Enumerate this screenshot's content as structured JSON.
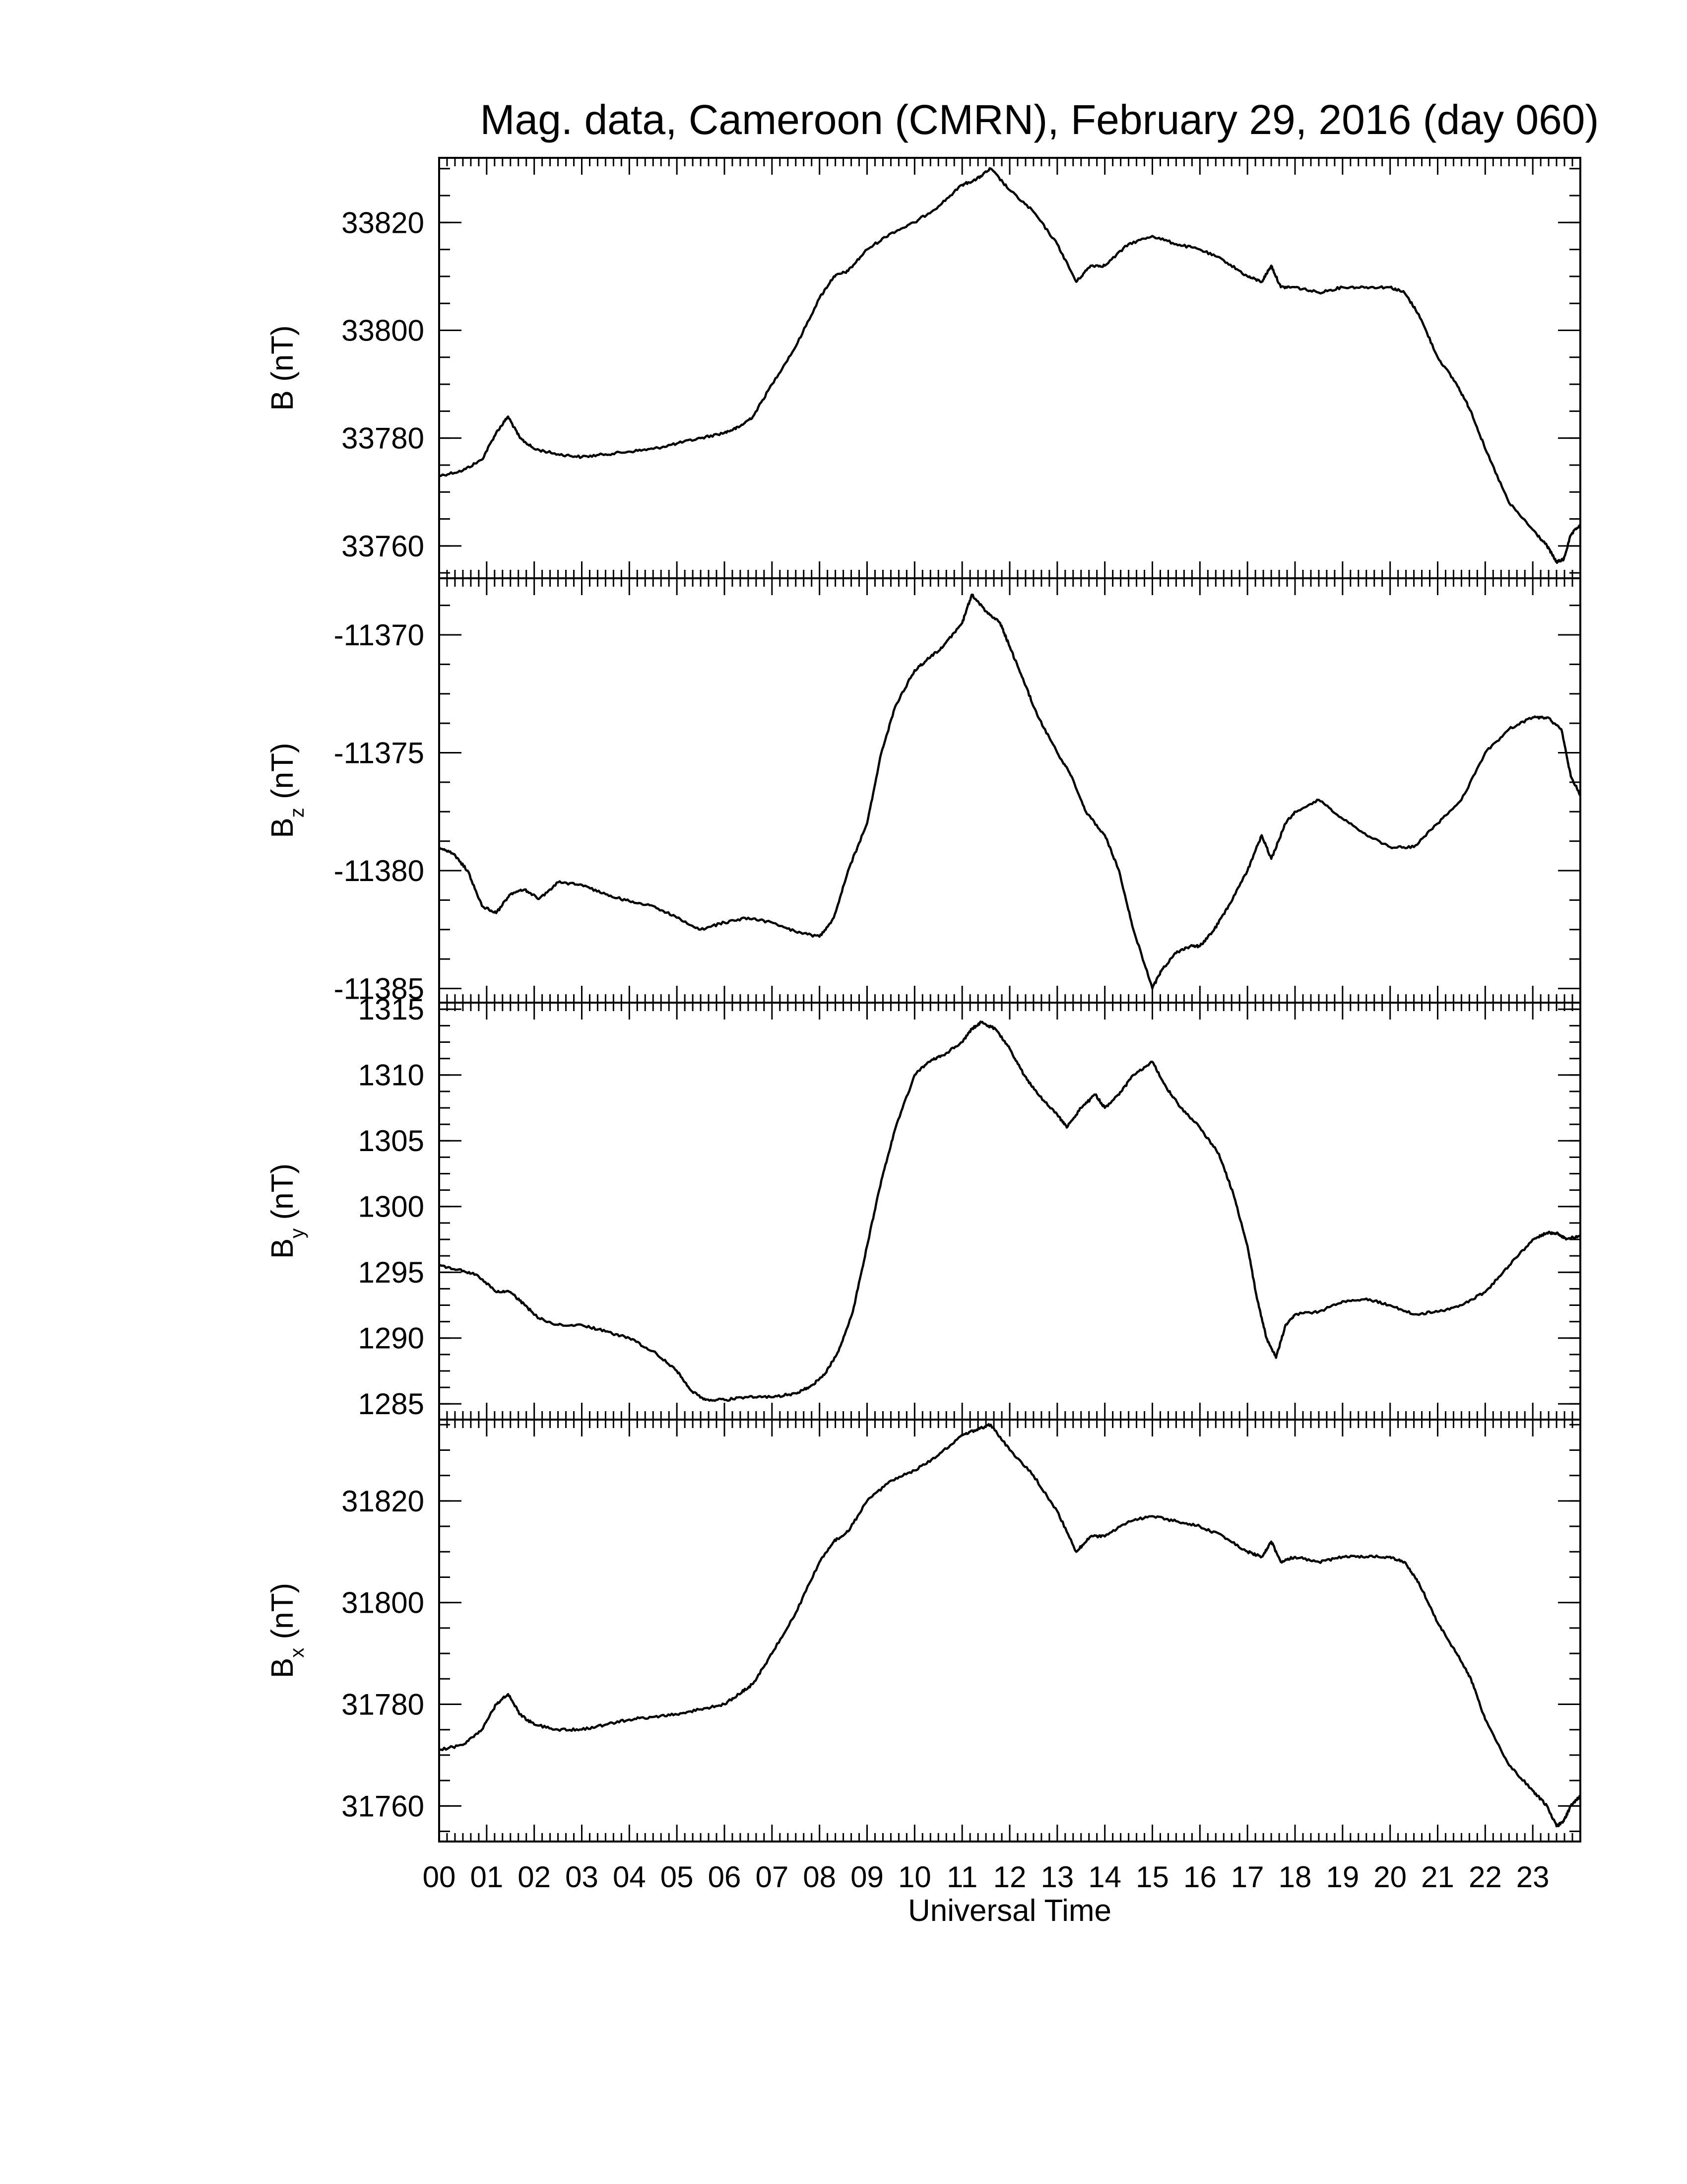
{
  "title": "Mag. data, Cameroon (CMRN), February 29, 2016 (day 060)",
  "xlabel": "Universal Time",
  "chart_data": [
    {
      "type": "line",
      "ylabel": "B (nT)",
      "ylabel_main": "B",
      "ylabel_sub": "",
      "ylabel_unit": " (nT)",
      "ylim": [
        33754,
        33832
      ],
      "yticks": [
        33760,
        33780,
        33800,
        33820
      ],
      "xlim": [
        0,
        24
      ],
      "x": [
        0,
        0.5,
        0.9,
        1.2,
        1.45,
        1.7,
        2.0,
        2.5,
        3.0,
        3.5,
        4.0,
        4.5,
        5.0,
        5.5,
        6.0,
        6.3,
        6.6,
        7.0,
        7.5,
        8.0,
        8.3,
        8.6,
        9.0,
        9.5,
        10.0,
        10.5,
        11.0,
        11.3,
        11.6,
        12.0,
        12.5,
        13.0,
        13.4,
        13.7,
        14.0,
        14.5,
        15.0,
        15.5,
        16.0,
        16.5,
        17.0,
        17.3,
        17.5,
        17.7,
        18.0,
        18.5,
        19.0,
        19.5,
        20.0,
        20.3,
        20.6,
        21.0,
        21.4,
        21.7,
        22.0,
        22.5,
        23.0,
        23.3,
        23.5,
        23.65,
        23.8,
        24.0
      ],
      "y": [
        33773,
        33774,
        33776,
        33781,
        33784,
        33780,
        33778,
        33777,
        33776.5,
        33777,
        33777.5,
        33778,
        33779,
        33780,
        33781,
        33782,
        33784,
        33790,
        33797,
        33806,
        33810,
        33811,
        33815,
        33818,
        33820,
        33823,
        33827,
        33828,
        33830,
        33826,
        33822,
        33816,
        33809,
        33812,
        33812,
        33816,
        33817.5,
        33816,
        33815,
        33813,
        33810,
        33809,
        33812,
        33808,
        33808,
        33807,
        33808,
        33808,
        33808,
        33807,
        33803,
        33795,
        33790,
        33785,
        33778,
        33768,
        33763,
        33760,
        33757,
        33757.5,
        33762,
        33764
      ]
    },
    {
      "type": "line",
      "ylabel": "Bz (nT)",
      "ylabel_main": "B",
      "ylabel_sub": "z",
      "ylabel_unit": " (nT)",
      "ylim": [
        -11385.6,
        -11367.6
      ],
      "yticks": [
        -11385,
        -11380,
        -11375,
        -11370
      ],
      "xlim": [
        0,
        24
      ],
      "x": [
        0,
        0.3,
        0.6,
        0.9,
        1.2,
        1.5,
        1.8,
        2.1,
        2.5,
        3.0,
        3.5,
        4.0,
        4.5,
        5.0,
        5.5,
        6.0,
        6.5,
        7.0,
        7.5,
        8.0,
        8.3,
        8.6,
        9.0,
        9.3,
        9.6,
        10.0,
        10.3,
        10.6,
        11.0,
        11.2,
        11.5,
        11.8,
        12.0,
        12.3,
        12.6,
        13.0,
        13.3,
        13.6,
        14.0,
        14.3,
        14.6,
        15.0,
        15.2,
        15.5,
        15.8,
        16.0,
        16.3,
        16.6,
        17.0,
        17.3,
        17.5,
        17.8,
        18.0,
        18.5,
        19.0,
        19.5,
        20.0,
        20.5,
        21.0,
        21.5,
        22.0,
        22.5,
        23.0,
        23.3,
        23.6,
        23.8,
        24.0
      ],
      "y": [
        -11379.0,
        -11379.3,
        -11380.0,
        -11381.5,
        -11381.8,
        -11381.0,
        -11380.8,
        -11381.2,
        -11380.5,
        -11380.6,
        -11381.0,
        -11381.3,
        -11381.5,
        -11382.0,
        -11382.5,
        -11382.2,
        -11382.0,
        -11382.2,
        -11382.6,
        -11382.8,
        -11382.0,
        -11380.0,
        -11378.0,
        -11375.0,
        -11373.0,
        -11371.5,
        -11371.0,
        -11370.5,
        -11369.5,
        -11368.3,
        -11369.0,
        -11369.5,
        -11370.5,
        -11372.0,
        -11373.5,
        -11375.0,
        -11376.0,
        -11377.5,
        -11378.5,
        -11380.0,
        -11382.5,
        -11385.0,
        -11384.2,
        -11383.5,
        -11383.2,
        -11383.2,
        -11382.5,
        -11381.5,
        -11380.0,
        -11378.5,
        -11379.5,
        -11378.0,
        -11377.5,
        -11377.0,
        -11377.8,
        -11378.5,
        -11379.0,
        -11379.0,
        -11378.0,
        -11377.0,
        -11375.0,
        -11374.0,
        -11373.5,
        -11373.5,
        -11374.0,
        -11376.0,
        -11376.8
      ]
    },
    {
      "type": "line",
      "ylabel": "By (nT)",
      "ylabel_main": "B",
      "ylabel_sub": "y",
      "ylabel_unit": " (nT)",
      "ylim": [
        1283.8,
        1315.5
      ],
      "yticks": [
        1285,
        1290,
        1295,
        1300,
        1305,
        1310,
        1315
      ],
      "xlim": [
        0,
        24
      ],
      "x": [
        0,
        0.4,
        0.8,
        1.2,
        1.5,
        1.8,
        2.1,
        2.5,
        3.0,
        3.5,
        4.0,
        4.5,
        5.0,
        5.3,
        5.6,
        6.0,
        6.5,
        7.0,
        7.5,
        7.8,
        8.1,
        8.4,
        8.7,
        9.0,
        9.3,
        9.6,
        10.0,
        10.3,
        10.6,
        11.0,
        11.2,
        11.4,
        11.7,
        12.0,
        12.3,
        12.6,
        13.0,
        13.2,
        13.5,
        13.8,
        14.0,
        14.3,
        14.6,
        15.0,
        15.3,
        15.6,
        16.0,
        16.4,
        16.7,
        17.0,
        17.2,
        17.4,
        17.6,
        17.8,
        18.0,
        18.5,
        19.0,
        19.5,
        20.0,
        20.5,
        21.0,
        21.5,
        22.0,
        22.5,
        23.0,
        23.3,
        23.5,
        23.7,
        24.0
      ],
      "y": [
        1295.5,
        1295.2,
        1294.8,
        1293.5,
        1293.5,
        1292.5,
        1291.5,
        1291.0,
        1291.0,
        1290.5,
        1290.0,
        1289.0,
        1287.5,
        1286.0,
        1285.3,
        1285.3,
        1285.5,
        1285.5,
        1285.8,
        1286.3,
        1287.2,
        1289.0,
        1292.0,
        1297.0,
        1302.0,
        1306.0,
        1310.0,
        1311.0,
        1311.5,
        1312.5,
        1313.5,
        1314.0,
        1313.5,
        1312.0,
        1310.0,
        1308.5,
        1307.0,
        1306.0,
        1307.5,
        1308.5,
        1307.5,
        1308.5,
        1310.0,
        1311.0,
        1309.0,
        1307.5,
        1306.0,
        1304.0,
        1301.0,
        1297.0,
        1293.0,
        1290.0,
        1288.5,
        1291.0,
        1291.8,
        1292.0,
        1292.8,
        1293.0,
        1292.5,
        1291.8,
        1292.0,
        1292.5,
        1293.5,
        1295.5,
        1297.5,
        1298.0,
        1298.0,
        1297.5,
        1297.8
      ]
    },
    {
      "type": "line",
      "ylabel": "Bx (nT)",
      "ylabel_main": "B",
      "ylabel_sub": "x",
      "ylabel_unit": " (nT)",
      "ylim": [
        31753,
        31836
      ],
      "yticks": [
        31760,
        31780,
        31800,
        31820
      ],
      "xlim": [
        0,
        24
      ],
      "x": [
        0,
        0.5,
        0.9,
        1.2,
        1.45,
        1.7,
        2.0,
        2.5,
        3.0,
        3.5,
        4.0,
        4.5,
        5.0,
        5.5,
        6.0,
        6.3,
        6.6,
        7.0,
        7.5,
        8.0,
        8.3,
        8.6,
        9.0,
        9.5,
        10.0,
        10.5,
        11.0,
        11.3,
        11.6,
        12.0,
        12.5,
        13.0,
        13.4,
        13.7,
        14.0,
        14.5,
        15.0,
        15.5,
        16.0,
        16.5,
        17.0,
        17.3,
        17.5,
        17.7,
        18.0,
        18.5,
        19.0,
        19.5,
        20.0,
        20.3,
        20.6,
        21.0,
        21.4,
        21.7,
        22.0,
        22.5,
        23.0,
        23.3,
        23.5,
        23.65,
        23.8,
        24.0
      ],
      "y": [
        31771,
        31772,
        31775,
        31780,
        31782,
        31778,
        31776,
        31775,
        31775,
        31776,
        31777,
        31777.5,
        31778,
        31779,
        31780,
        31782,
        31784,
        31790,
        31798,
        31808,
        31812,
        31814,
        31820,
        31824,
        31826,
        31829,
        31833,
        31834,
        31835,
        31830,
        31825,
        31818,
        31810,
        31813,
        31813,
        31816,
        31817,
        31816,
        31815,
        31813,
        31810,
        31809,
        31812,
        31808,
        31809,
        31808,
        31809,
        31809,
        31809,
        31808,
        31804,
        31796,
        31790,
        31785,
        31777,
        31768,
        31763,
        31760,
        31756,
        31757,
        31760,
        31762
      ]
    }
  ],
  "time_ticks": [
    "00",
    "01",
    "02",
    "03",
    "04",
    "05",
    "06",
    "07",
    "08",
    "09",
    "10",
    "11",
    "12",
    "13",
    "14",
    "15",
    "16",
    "17",
    "18",
    "19",
    "20",
    "21",
    "22",
    "23"
  ]
}
